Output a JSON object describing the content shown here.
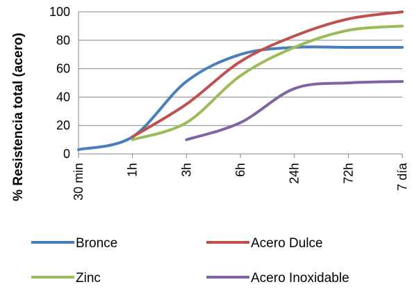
{
  "chart_data": {
    "type": "line",
    "categories": [
      "30 min",
      "1h",
      "3h",
      "6h",
      "24h",
      "72h",
      "7 día"
    ],
    "ylabel": "% Resistencia total (acero)",
    "xlabel": "",
    "title": "",
    "ylim": [
      0,
      100
    ],
    "yticks": [
      0,
      20,
      40,
      60,
      80,
      100
    ],
    "grid": "horizontal",
    "legend_position": "bottom",
    "series": [
      {
        "name": "Bronce",
        "color": "#4a7ebb",
        "values": [
          3,
          12,
          51,
          70,
          75,
          75,
          75
        ]
      },
      {
        "name": "Acero Dulce",
        "color": "#c0504d",
        "values": [
          null,
          12,
          35,
          65,
          83,
          95,
          100
        ]
      },
      {
        "name": "Zinc",
        "color": "#9bbb59",
        "values": [
          null,
          10,
          22,
          55,
          75,
          87,
          90
        ]
      },
      {
        "name": "Acero Inoxidable",
        "color": "#8064a2",
        "values": [
          null,
          null,
          10,
          22,
          46,
          50,
          51
        ]
      }
    ]
  }
}
